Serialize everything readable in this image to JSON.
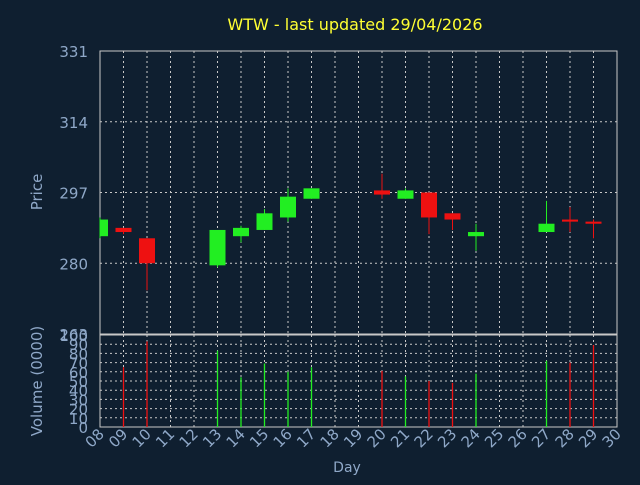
{
  "title": "WTW - last updated 29/04/2026",
  "colors": {
    "background": "#0f1f30",
    "title": "#ffff33",
    "axis_text": "#8fa8c8",
    "axis_line": "#c8c8c8",
    "grid": "#c8c8c8",
    "up": "#22ee22",
    "down": "#ee1111"
  },
  "chart_data": [
    {
      "type": "candlestick",
      "title": "WTW - last updated 29/04/2026",
      "ylabel": "Price",
      "ylim": [
        263,
        331
      ],
      "yticks": [
        331,
        314,
        297,
        280,
        263
      ],
      "grid": true,
      "candles": [
        {
          "day": "08",
          "open": 286.5,
          "high": 291.0,
          "low": 286.0,
          "close": 290.5
        },
        {
          "day": "09",
          "open": 288.5,
          "high": 288.5,
          "low": 287.0,
          "close": 287.5
        },
        {
          "day": "10",
          "open": 286.0,
          "high": 286.0,
          "low": 273.5,
          "close": 280.0
        },
        {
          "day": "13",
          "open": 279.5,
          "high": 288.0,
          "low": 279.0,
          "close": 288.0
        },
        {
          "day": "14",
          "open": 286.5,
          "high": 289.0,
          "low": 285.0,
          "close": 288.5
        },
        {
          "day": "15",
          "open": 288.0,
          "high": 293.0,
          "low": 288.0,
          "close": 292.0
        },
        {
          "day": "16",
          "open": 291.0,
          "high": 298.0,
          "low": 290.0,
          "close": 296.0
        },
        {
          "day": "17",
          "open": 295.5,
          "high": 298.0,
          "low": 295.5,
          "close": 298.0
        },
        {
          "day": "20",
          "open": 297.5,
          "high": 301.5,
          "low": 295.5,
          "close": 296.5
        },
        {
          "day": "21",
          "open": 295.5,
          "high": 298.0,
          "low": 295.5,
          "close": 297.5
        },
        {
          "day": "22",
          "open": 297.0,
          "high": 297.0,
          "low": 287.0,
          "close": 291.0
        },
        {
          "day": "23",
          "open": 292.0,
          "high": 292.0,
          "low": 288.0,
          "close": 290.5
        },
        {
          "day": "24",
          "open": 286.5,
          "high": 289.5,
          "low": 283.0,
          "close": 287.5
        },
        {
          "day": "27",
          "open": 287.5,
          "high": 295.0,
          "low": 287.5,
          "close": 289.5
        },
        {
          "day": "28",
          "open": 290.5,
          "high": 293.5,
          "low": 287.5,
          "close": 290.0
        },
        {
          "day": "29",
          "open": 290.0,
          "high": 290.5,
          "low": 286.0,
          "close": 289.5
        }
      ]
    },
    {
      "type": "bar",
      "ylabel": "Volume (0000)",
      "xlabel": "Day",
      "ylim": [
        0,
        100
      ],
      "yticks": [
        0,
        10,
        20,
        30,
        40,
        50,
        60,
        70,
        80,
        90,
        100
      ],
      "grid": true,
      "categories": [
        "08",
        "09",
        "10",
        "11",
        "12",
        "13",
        "14",
        "15",
        "16",
        "17",
        "18",
        "19",
        "20",
        "21",
        "22",
        "23",
        "24",
        "25",
        "26",
        "27",
        "28",
        "29",
        "30"
      ],
      "bars": [
        {
          "day": "09",
          "value": 65,
          "direction": "down"
        },
        {
          "day": "10",
          "value": 93,
          "direction": "down"
        },
        {
          "day": "13",
          "value": 83,
          "direction": "up"
        },
        {
          "day": "14",
          "value": 54,
          "direction": "up"
        },
        {
          "day": "15",
          "value": 69,
          "direction": "up"
        },
        {
          "day": "16",
          "value": 60,
          "direction": "up"
        },
        {
          "day": "17",
          "value": 65,
          "direction": "up"
        },
        {
          "day": "20",
          "value": 61,
          "direction": "down"
        },
        {
          "day": "21",
          "value": 55,
          "direction": "up"
        },
        {
          "day": "22",
          "value": 50,
          "direction": "down"
        },
        {
          "day": "23",
          "value": 48,
          "direction": "down"
        },
        {
          "day": "24",
          "value": 58,
          "direction": "up"
        },
        {
          "day": "27",
          "value": 72,
          "direction": "up"
        },
        {
          "day": "28",
          "value": 70,
          "direction": "down"
        },
        {
          "day": "29",
          "value": 89,
          "direction": "down"
        }
      ]
    }
  ]
}
